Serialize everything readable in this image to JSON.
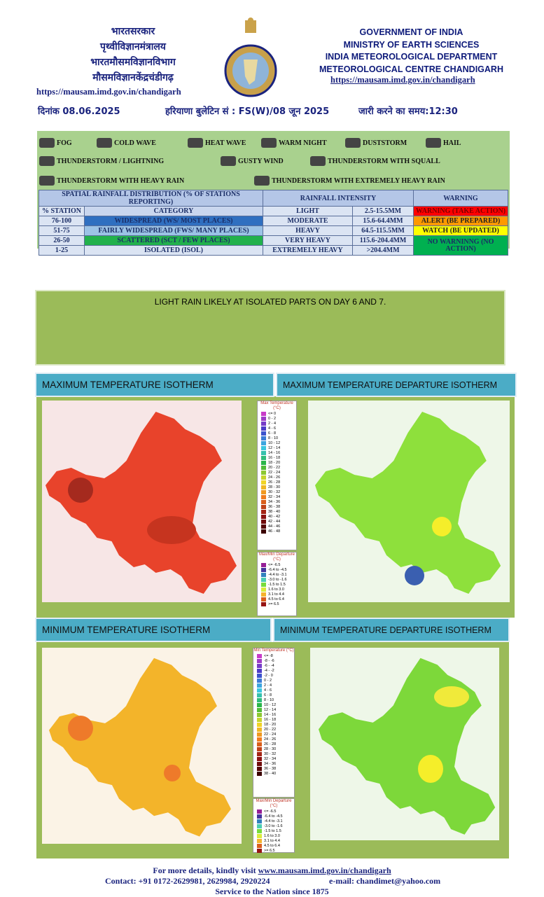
{
  "header": {
    "hindi_lines": [
      "भारतसरकार",
      "पृथ्वीविज्ञानमंत्रालय",
      "भारतमौसमविज्ञानविभाग",
      "मौसमविज्ञानकेंद्रचंडीगढ़"
    ],
    "english_lines": [
      "GOVERNMENT OF INDIA",
      "MINISTRY OF EARTH SCIENCES",
      "INDIA METEOROLOGICAL DEPARTMENT",
      "METEOROLOGICAL CENTRE CHANDIGARH"
    ],
    "url_left": "https://mausam.imd.gov.in/chandigarh",
    "url_right": "https://mausam.imd.gov.in/chandigarh",
    "date": "दिनांक 08.06.2025",
    "bulletin": "हरियाणा बुलेटिन सं : FS(W)/08 जून 2025",
    "issue_time": "जारी करने का समय:12:30"
  },
  "legend": {
    "icons": [
      "FOG",
      "COLD WAVE",
      "HEAT WAVE",
      "WARM NIGHT",
      "DUSTSTORM",
      "HAIL",
      "THUNDERSTORM / LIGHTNING",
      "GUSTY WIND",
      "THUNDERSTORM WITH SQUALL",
      "THUNDERSTORM WITH HEAVY RAIN",
      "THUNDERSTORM WITH EXTREMELY HEAVY RAIN"
    ]
  },
  "table": {
    "headers": [
      "SPATIAL RAINFALL DISTRIBUTION (% OF STATIONS REPORTING)",
      "RAINFALL INTENSITY",
      "WARNING"
    ],
    "rows": [
      [
        "% STATION",
        "CATEGORY",
        "LIGHT",
        "2.5-15.5MM"
      ],
      [
        "76-100",
        "WIDESPREAD (WS/ MOST PLACES)",
        "MODERATE",
        "15.6-64.4MM"
      ],
      [
        "51-75",
        "FAIRLY WIDESPREAD (FWS/ MANY PLACES)",
        "HEAVY",
        "64.5-115.5MM"
      ],
      [
        "26-50",
        "SCATTERED (SCT / FEW PLACES)",
        "VERY HEAVY",
        "115.6-204.4MM"
      ],
      [
        "1-25",
        "ISOLATED (ISOL)",
        "EXTREMELY HEAVY",
        ">204.4MM"
      ]
    ],
    "warnings": [
      "WARNING (TAKE ACTION)",
      "ALERT (BE PREPARED)",
      "WATCH (BE UPDATED)",
      "NO WARNINNG (NO ACTION)"
    ]
  },
  "forecast": "LIGHT RAIN LIKELY AT ISOLATED PARTS ON DAY 6 AND 7.",
  "panels": [
    "MAXIMUM TEMPERATURE ISOTHERM",
    "MAXIMUM TEMPERATURE DEPARTURE ISOTHERM",
    "MINIMUM TEMPERATURE ISOTHERM",
    "MINIMUM TEMPERATURE DEPARTURE ISOTHERM"
  ],
  "max_legend": {
    "title": "Max Temperature (°C)",
    "labels": [
      "<= 0",
      "0 - 2",
      "2 - 4",
      "4 - 6",
      "6 - 8",
      "8 - 10",
      "10 - 12",
      "12 - 14",
      "14 - 16",
      "16 - 18",
      "18 - 20",
      "20 - 22",
      "22 - 24",
      "24 - 26",
      "26 - 28",
      "28 - 30",
      "30 - 32",
      "32 - 34",
      "34 - 36",
      "36 - 38",
      "38 - 40",
      "40 - 42",
      "42 - 44",
      "44 - 46",
      "46 - 48"
    ]
  },
  "min_legend": {
    "title": "Min Temperature (°C)",
    "labels": [
      "<= -8",
      "-8 - -6",
      "-6 - -4",
      "-4 - -2",
      "-2 - 0",
      "0 - 2",
      "2 - 4",
      "4 - 6",
      "6 - 8",
      "8 - 10",
      "10 - 12",
      "12 - 14",
      "14 - 16",
      "16 - 18",
      "18 - 20",
      "20 - 22",
      "22 - 24",
      "24 - 26",
      "26 - 28",
      "28 - 30",
      "30 - 32",
      "32 - 34",
      "34 - 36",
      "36 - 38",
      "38 - 40"
    ]
  },
  "departure_legend": {
    "title": "Max/Min Departure (°C)",
    "labels": [
      "<= -6.5",
      "-6.4 to -4.5",
      "-4.4 to -3.1",
      "-3.0 to -1.6",
      "-1.5 to 1.5",
      "1.6 to 3.0",
      "3.1 to 4.4",
      "4.5 to 6.4",
      ">= 6.5"
    ]
  },
  "footer": {
    "visit": "For more details, kindly visit",
    "link": "www.mausam.imd.gov.in/chandigarh",
    "contact": "Contact: +91 0172-2629981, 2629984, 2920224",
    "email": "e-mail: chandimet@yahoo.com",
    "service": "Service to the Nation since 1875"
  }
}
